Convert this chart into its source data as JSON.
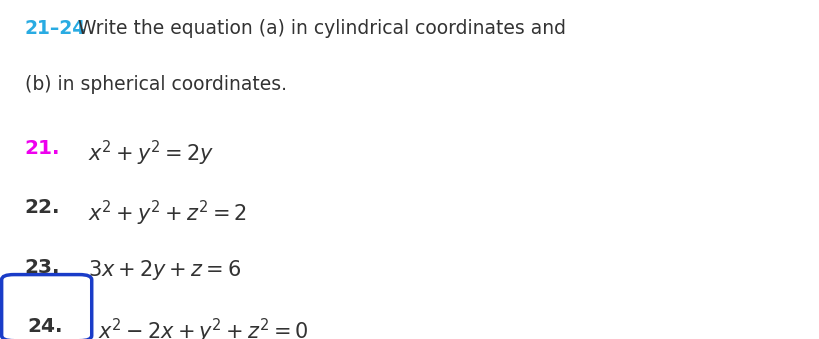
{
  "background_color": "#ffffff",
  "header_number_color": "#29ABE2",
  "num21_color": "#EE00EE",
  "num_dark_color": "#333333",
  "eq_color": "#333333",
  "box24_color": "#1a3cc8",
  "header_number": "21–24",
  "header_line1": "Write the equation (a) in cylindrical coordinates and",
  "header_line2": "(b) in spherical coordinates.",
  "eq21_num": "21.",
  "eq21_body": "$x^2 + y^2 = 2y$",
  "eq22_num": "22.",
  "eq22_body": "$x^2 + y^2 + z^2 = 2$",
  "eq23_num": "23.",
  "eq23_body": "$3x + 2y + z = 6$",
  "eq24_num": "24.",
  "eq24_body": "$x^2 - 2x + y^2 + z^2 = 0$",
  "figsize": [
    8.19,
    3.39
  ],
  "dpi": 100,
  "header_fs": 13.5,
  "num_fs": 14.5,
  "eq_fs": 15.0
}
